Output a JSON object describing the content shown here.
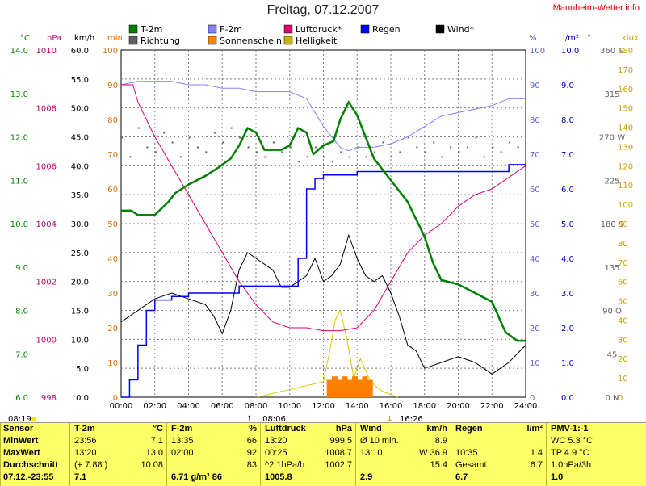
{
  "title": "Freitag, 07.12.2007",
  "site": "Mannheim-Wetter.info",
  "legend": [
    {
      "label": "T-2m",
      "color": "#008000"
    },
    {
      "label": "Richtung",
      "color": "#606060"
    },
    {
      "label": "F-2m",
      "color": "#8080ff"
    },
    {
      "label": "Sonnenschein",
      "color": "#ff8000"
    },
    {
      "label": "Luftdruck*",
      "color": "#e00070"
    },
    {
      "label": "Helligkeit",
      "color": "#c8b400"
    },
    {
      "label": "Regen",
      "color": "#0000ff"
    },
    {
      "label": "Wind*",
      "color": "#000000"
    }
  ],
  "axes": {
    "temp": {
      "unit": "°C",
      "ticks": [
        "14.0",
        "13.0",
        "12.0",
        "11.0",
        "10.0",
        "9.0",
        "8.0",
        "7.0",
        "6.0"
      ]
    },
    "pressure": {
      "unit": "hPa",
      "ticks": [
        "1010",
        "1008",
        "1006",
        "1004",
        "1002",
        "1000",
        "998"
      ]
    },
    "wind": {
      "unit": "km/h",
      "ticks": [
        "60.0",
        "55.0",
        "50.0",
        "45.0",
        "40.0",
        "35.0",
        "30.0",
        "25.0",
        "20.0",
        "15.0",
        "10.0",
        "5.0",
        "0.0"
      ]
    },
    "minutes": {
      "unit": "min",
      "ticks": [
        "100",
        "90",
        "80",
        "70",
        "60",
        "50",
        "40",
        "30",
        "20",
        "10",
        "0"
      ]
    },
    "humidity": {
      "unit": "%",
      "ticks": [
        "100",
        "90",
        "80",
        "70",
        "60",
        "50",
        "40",
        "30",
        "20",
        "10",
        "0"
      ]
    },
    "rain": {
      "unit": "l/m²",
      "ticks": [
        "10.0",
        "9.0",
        "8.0",
        "7.0",
        "6.0",
        "5.0",
        "4.0",
        "3.0",
        "2.0",
        "1.0",
        "0.0"
      ]
    },
    "direction": {
      "unit": "°",
      "ticks": [
        "360 N",
        "315",
        "270 W",
        "225",
        "180 S",
        "135",
        "90 O",
        "45",
        "0 N"
      ]
    },
    "light": {
      "unit": "klux",
      "ticks": [
        "180",
        "170",
        "160",
        "150",
        "140",
        "130",
        "120",
        "110",
        "100",
        "90",
        "80",
        "70",
        "60",
        "50",
        "40",
        "30",
        "20",
        "10",
        "0"
      ]
    },
    "time": {
      "ticks": [
        "00:00",
        "02:00",
        "04:00",
        "06:00",
        "08:00",
        "10:00",
        "12:00",
        "14:00",
        "16:00",
        "18:00",
        "20:00",
        "22:00",
        "24:00"
      ]
    }
  },
  "sun_events": {
    "sunrise": "08:06",
    "sunset": "16:26"
  },
  "chart_data": {
    "type": "line",
    "title": "Freitag, 07.12.2007",
    "xlabel": "",
    "x_range": [
      "00:00",
      "24:00"
    ],
    "grid": true,
    "series": [
      {
        "name": "T-2m",
        "unit": "°C",
        "ylim": [
          6,
          14
        ],
        "points": [
          [
            0,
            10.3
          ],
          [
            0.6,
            10.3
          ],
          [
            1,
            10.2
          ],
          [
            2,
            10.2
          ],
          [
            2.8,
            10.5
          ],
          [
            3.2,
            10.7
          ],
          [
            4,
            10.9
          ],
          [
            5,
            11.1
          ],
          [
            5.8,
            11.3
          ],
          [
            6.5,
            11.5
          ],
          [
            7,
            11.8
          ],
          [
            7.5,
            12.2
          ],
          [
            8,
            12.1
          ],
          [
            8.5,
            11.7
          ],
          [
            9.5,
            11.7
          ],
          [
            10,
            11.8
          ],
          [
            10.5,
            12.2
          ],
          [
            11,
            12.1
          ],
          [
            11.4,
            11.6
          ],
          [
            12,
            11.8
          ],
          [
            12.6,
            11.9
          ],
          [
            13,
            12.4
          ],
          [
            13.5,
            12.8
          ],
          [
            14,
            12.5
          ],
          [
            14.5,
            12.0
          ],
          [
            15,
            11.5
          ],
          [
            16,
            11.0
          ],
          [
            17,
            10.5
          ],
          [
            18,
            9.7
          ],
          [
            18.5,
            9.1
          ],
          [
            19,
            8.7
          ],
          [
            20,
            8.6
          ],
          [
            21,
            8.4
          ],
          [
            22,
            8.2
          ],
          [
            22.8,
            7.5
          ],
          [
            23.5,
            7.3
          ],
          [
            24,
            7.3
          ]
        ]
      },
      {
        "name": "F-2m",
        "unit": "%",
        "ylim": [
          0,
          100
        ],
        "points": [
          [
            0,
            90
          ],
          [
            1,
            91
          ],
          [
            2,
            91
          ],
          [
            3,
            91
          ],
          [
            4,
            90
          ],
          [
            5,
            90
          ],
          [
            6,
            89
          ],
          [
            7,
            89
          ],
          [
            8,
            88
          ],
          [
            9,
            88
          ],
          [
            10,
            88
          ],
          [
            11,
            86
          ],
          [
            12,
            78
          ],
          [
            13,
            72
          ],
          [
            13.5,
            71
          ],
          [
            14,
            72
          ],
          [
            15,
            72
          ],
          [
            16,
            73
          ],
          [
            17,
            75
          ],
          [
            18,
            78
          ],
          [
            19,
            81
          ],
          [
            20,
            82
          ],
          [
            21,
            83
          ],
          [
            22,
            84
          ],
          [
            23,
            86
          ],
          [
            24,
            86
          ]
        ]
      },
      {
        "name": "Luftdruck*",
        "unit": "hPa",
        "ylim": [
          998,
          1010
        ],
        "points": [
          [
            0,
            1008.8
          ],
          [
            0.7,
            1008.8
          ],
          [
            1,
            1008.2
          ],
          [
            2,
            1007.0
          ],
          [
            3,
            1006.0
          ],
          [
            4,
            1005.0
          ],
          [
            5,
            1004.0
          ],
          [
            6,
            1003.0
          ],
          [
            7,
            1002.0
          ],
          [
            8,
            1001.2
          ],
          [
            9,
            1000.6
          ],
          [
            10,
            1000.4
          ],
          [
            11,
            1000.4
          ],
          [
            12,
            1000.3
          ],
          [
            13,
            1000.3
          ],
          [
            14,
            1000.4
          ],
          [
            15,
            1001.0
          ],
          [
            16,
            1002.0
          ],
          [
            17,
            1003.0
          ],
          [
            18,
            1003.6
          ],
          [
            19,
            1004.0
          ],
          [
            20,
            1004.6
          ],
          [
            21,
            1005.0
          ],
          [
            22,
            1005.2
          ],
          [
            23,
            1005.6
          ],
          [
            24,
            1006.0
          ]
        ]
      },
      {
        "name": "Wind*",
        "unit": "km/h",
        "ylim": [
          0,
          60
        ],
        "points": [
          [
            0,
            13
          ],
          [
            1,
            15
          ],
          [
            2,
            17
          ],
          [
            3,
            18
          ],
          [
            4,
            17
          ],
          [
            5,
            16
          ],
          [
            5.5,
            14
          ],
          [
            6,
            11
          ],
          [
            6.5,
            15
          ],
          [
            7,
            22
          ],
          [
            7.5,
            25
          ],
          [
            8,
            24
          ],
          [
            8.5,
            23
          ],
          [
            9,
            22
          ],
          [
            9.5,
            19
          ],
          [
            10,
            19
          ],
          [
            10.5,
            20
          ],
          [
            11,
            21
          ],
          [
            11.5,
            24
          ],
          [
            12,
            20
          ],
          [
            12.5,
            21
          ],
          [
            13,
            23
          ],
          [
            13.5,
            28
          ],
          [
            14,
            24
          ],
          [
            14.5,
            21
          ],
          [
            15,
            20
          ],
          [
            15.5,
            21
          ],
          [
            16,
            18
          ],
          [
            16.5,
            14
          ],
          [
            17,
            9
          ],
          [
            17.5,
            8
          ],
          [
            18,
            5
          ],
          [
            19,
            6
          ],
          [
            20,
            7
          ],
          [
            21,
            6
          ],
          [
            22,
            4
          ],
          [
            22.5,
            5
          ],
          [
            23,
            6
          ],
          [
            24,
            9
          ]
        ]
      },
      {
        "name": "Regen",
        "unit": "l/m²",
        "ylim": [
          0,
          10
        ],
        "points": [
          [
            0,
            0
          ],
          [
            0.5,
            0.5
          ],
          [
            1,
            1.5
          ],
          [
            1.5,
            2.5
          ],
          [
            2,
            2.8
          ],
          [
            3,
            2.9
          ],
          [
            4,
            3.0
          ],
          [
            5,
            3.0
          ],
          [
            6,
            3.0
          ],
          [
            7,
            3.2
          ],
          [
            8,
            3.2
          ],
          [
            9,
            3.2
          ],
          [
            10,
            3.2
          ],
          [
            10.5,
            4.0
          ],
          [
            11,
            6.0
          ],
          [
            11.5,
            6.3
          ],
          [
            12,
            6.4
          ],
          [
            14,
            6.5
          ],
          [
            16,
            6.5
          ],
          [
            18,
            6.5
          ],
          [
            20,
            6.5
          ],
          [
            22,
            6.5
          ],
          [
            22.8,
            6.5
          ],
          [
            23,
            6.7
          ],
          [
            24,
            6.7
          ]
        ]
      },
      {
        "name": "Sonnenschein",
        "unit": "min",
        "ylim": [
          0,
          100
        ],
        "bars": [
          [
            12.2,
            5
          ],
          [
            12.5,
            6
          ],
          [
            12.8,
            5
          ],
          [
            13.1,
            6
          ],
          [
            13.4,
            5
          ],
          [
            13.7,
            6
          ],
          [
            14.0,
            5
          ],
          [
            14.3,
            6
          ],
          [
            14.6,
            5
          ]
        ]
      },
      {
        "name": "Helligkeit",
        "unit": "klux",
        "ylim": [
          0,
          180
        ],
        "points": [
          [
            8.1,
            0
          ],
          [
            9,
            2
          ],
          [
            10,
            4
          ],
          [
            11,
            6
          ],
          [
            12,
            8
          ],
          [
            12.4,
            25
          ],
          [
            12.7,
            40
          ],
          [
            13,
            45
          ],
          [
            13.4,
            30
          ],
          [
            13.8,
            10
          ],
          [
            14.2,
            20
          ],
          [
            14.8,
            8
          ],
          [
            15.5,
            3
          ],
          [
            16.4,
            0
          ]
        ]
      },
      {
        "name": "Richtung",
        "unit": "°",
        "ylim": [
          0,
          360
        ],
        "dots": [
          [
            0,
            270
          ],
          [
            0.5,
            250
          ],
          [
            1,
            280
          ],
          [
            1.5,
            260
          ],
          [
            2,
            255
          ],
          [
            2.5,
            275
          ],
          [
            3,
            265
          ],
          [
            3.5,
            250
          ],
          [
            4,
            270
          ],
          [
            4.5,
            260
          ],
          [
            5,
            255
          ],
          [
            5.5,
            275
          ],
          [
            6,
            265
          ],
          [
            6.5,
            280
          ],
          [
            7,
            270
          ],
          [
            7.5,
            260
          ],
          [
            8,
            255
          ],
          [
            8.5,
            250
          ],
          [
            9,
            265
          ],
          [
            9.5,
            255
          ],
          [
            10,
            260
          ],
          [
            10.5,
            245
          ],
          [
            11,
            250
          ],
          [
            11.5,
            260
          ],
          [
            12,
            250
          ],
          [
            12.5,
            245
          ],
          [
            13,
            255
          ],
          [
            13.5,
            250
          ],
          [
            14,
            260
          ],
          [
            14.5,
            250
          ],
          [
            15,
            255
          ],
          [
            15.5,
            265
          ],
          [
            16,
            250
          ],
          [
            16.5,
            255
          ],
          [
            17,
            270
          ],
          [
            17.5,
            260
          ],
          [
            18,
            255
          ],
          [
            18.5,
            265
          ],
          [
            19,
            250
          ],
          [
            19.5,
            260
          ],
          [
            20,
            255
          ],
          [
            20.5,
            260
          ],
          [
            21,
            270
          ],
          [
            21.5,
            250
          ],
          [
            22,
            260
          ],
          [
            22.5,
            255
          ],
          [
            23,
            265
          ],
          [
            23.5,
            260
          ]
        ]
      }
    ]
  },
  "footer": {
    "sensor": {
      "head": "Sensor",
      "rows": [
        "MinWert",
        "MaxWert",
        "Durchschnitt"
      ],
      "partial": "07.12.-23:55"
    },
    "t2m": {
      "head": "T-2m",
      "unit": "°C",
      "rows": [
        [
          "23:56",
          "7.1"
        ],
        [
          "13:20",
          "13.0"
        ],
        [
          "(+ 7.88 )",
          "10.08"
        ]
      ],
      "partial": "7.1"
    },
    "f2m": {
      "head": "F-2m",
      "unit": "%",
      "rows": [
        [
          "13:35",
          "66"
        ],
        [
          "02:00",
          "92"
        ],
        [
          "",
          "83"
        ]
      ],
      "partial": "6.71 g/m³   86"
    },
    "druck": {
      "head": "Luftdruck",
      "unit": "hPa",
      "rows": [
        [
          "13:20",
          "999.5"
        ],
        [
          "00:25",
          "1008.7"
        ],
        [
          "^2.1hPa/h",
          "1002.7"
        ]
      ],
      "partial": "1005.8"
    },
    "wind": {
      "head": "Wind",
      "unit": "km/h",
      "rows": [
        [
          "Ø 10 min.",
          "8.9"
        ],
        [
          "13:10",
          "W 36.9"
        ],
        [
          "",
          "15.4"
        ]
      ],
      "partial": "2.9"
    },
    "regen": {
      "head": "Regen",
      "unit": "l/m²",
      "rows": [
        [
          "",
          ""
        ],
        [
          "10:35",
          "1.4"
        ],
        [
          "Gesamt:",
          "6.7"
        ]
      ],
      "partial": "6.7"
    },
    "pmv": {
      "head": "PMV-1:-1",
      "rows": [
        "WC 5.3 °C",
        "TP 4.9 °C",
        "1.0hPa/3h"
      ],
      "partial": "1.0"
    }
  }
}
